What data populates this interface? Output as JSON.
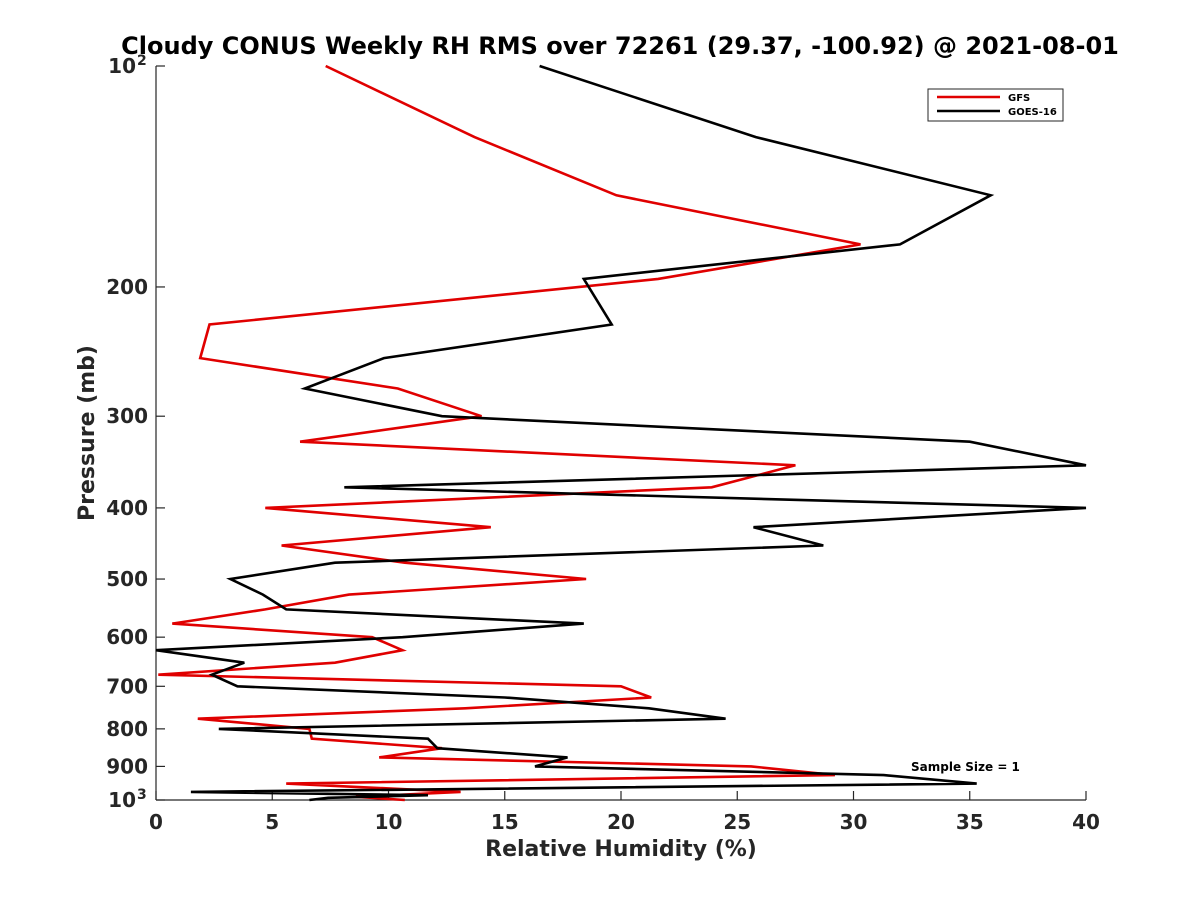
{
  "chart_data": {
    "type": "line",
    "title": "Cloudy CONUS Weekly RH RMS over 72261 (29.37, -100.92) @ 2021-08-01",
    "xlabel": "Relative Humidity (%)",
    "ylabel": "Pressure (mb)",
    "xlim": [
      0,
      40
    ],
    "ylim": [
      100,
      1000
    ],
    "yscale": "log",
    "yreversed": true,
    "x_ticks": [
      "0",
      "5",
      "10",
      "15",
      "20",
      "25",
      "30",
      "35",
      "40"
    ],
    "y_ticks": [
      {
        "value": 100,
        "label": "10",
        "exp": "2"
      },
      {
        "value": 200,
        "label": "200"
      },
      {
        "value": 300,
        "label": "300"
      },
      {
        "value": 400,
        "label": "400"
      },
      {
        "value": 500,
        "label": "500"
      },
      {
        "value": 600,
        "label": "600"
      },
      {
        "value": 700,
        "label": "700"
      },
      {
        "value": 800,
        "label": "800"
      },
      {
        "value": 900,
        "label": "900"
      },
      {
        "value": 1000,
        "label": "10",
        "exp": "3"
      }
    ],
    "legend_position": "top-right",
    "annotation": "Sample Size = 1",
    "series": [
      {
        "name": "GFS",
        "color": "#e00000",
        "points": [
          [
            7.3,
            100
          ],
          [
            13.7,
            125
          ],
          [
            19.8,
            150
          ],
          [
            30.3,
            175
          ],
          [
            21.6,
            195
          ],
          [
            2.3,
            225
          ],
          [
            1.9,
            250
          ],
          [
            10.4,
            275
          ],
          [
            14.0,
            300
          ],
          [
            6.2,
            325
          ],
          [
            27.5,
            350
          ],
          [
            23.9,
            375
          ],
          [
            4.7,
            400
          ],
          [
            14.4,
            425
          ],
          [
            5.4,
            450
          ],
          [
            10.7,
            475
          ],
          [
            18.5,
            500
          ],
          [
            8.3,
            525
          ],
          [
            4.7,
            550
          ],
          [
            0.7,
            575
          ],
          [
            9.3,
            600
          ],
          [
            10.6,
            625
          ],
          [
            7.7,
            650
          ],
          [
            0.1,
            675
          ],
          [
            20.0,
            700
          ],
          [
            21.3,
            725
          ],
          [
            13.3,
            750
          ],
          [
            1.8,
            775
          ],
          [
            6.6,
            800
          ],
          [
            6.7,
            825
          ],
          [
            12.3,
            850
          ],
          [
            9.6,
            875
          ],
          [
            25.6,
            900
          ],
          [
            29.2,
            925
          ],
          [
            5.6,
            950
          ],
          [
            13.1,
            975
          ],
          [
            8.6,
            990
          ],
          [
            10.7,
            1000
          ]
        ]
      },
      {
        "name": "GOES-16",
        "color": "#000000",
        "points": [
          [
            16.5,
            100
          ],
          [
            25.8,
            125
          ],
          [
            35.9,
            150
          ],
          [
            32.0,
            175
          ],
          [
            18.4,
            195
          ],
          [
            19.6,
            225
          ],
          [
            9.8,
            250
          ],
          [
            6.4,
            275
          ],
          [
            12.3,
            300
          ],
          [
            35.0,
            325
          ],
          [
            40.0,
            350
          ],
          [
            8.1,
            375
          ],
          [
            40.0,
            400
          ],
          [
            25.7,
            425
          ],
          [
            28.7,
            450
          ],
          [
            7.7,
            475
          ],
          [
            3.2,
            500
          ],
          [
            4.6,
            525
          ],
          [
            5.6,
            550
          ],
          [
            18.4,
            575
          ],
          [
            10.6,
            600
          ],
          [
            0.0,
            625
          ],
          [
            3.8,
            650
          ],
          [
            2.4,
            675
          ],
          [
            3.5,
            700
          ],
          [
            15.0,
            725
          ],
          [
            21.2,
            750
          ],
          [
            24.5,
            775
          ],
          [
            2.7,
            800
          ],
          [
            11.7,
            825
          ],
          [
            12.1,
            850
          ],
          [
            17.7,
            875
          ],
          [
            16.3,
            900
          ],
          [
            31.3,
            925
          ],
          [
            35.3,
            950
          ],
          [
            1.5,
            975
          ],
          [
            11.7,
            985
          ],
          [
            7.4,
            993
          ],
          [
            6.6,
            1000
          ]
        ]
      }
    ]
  }
}
